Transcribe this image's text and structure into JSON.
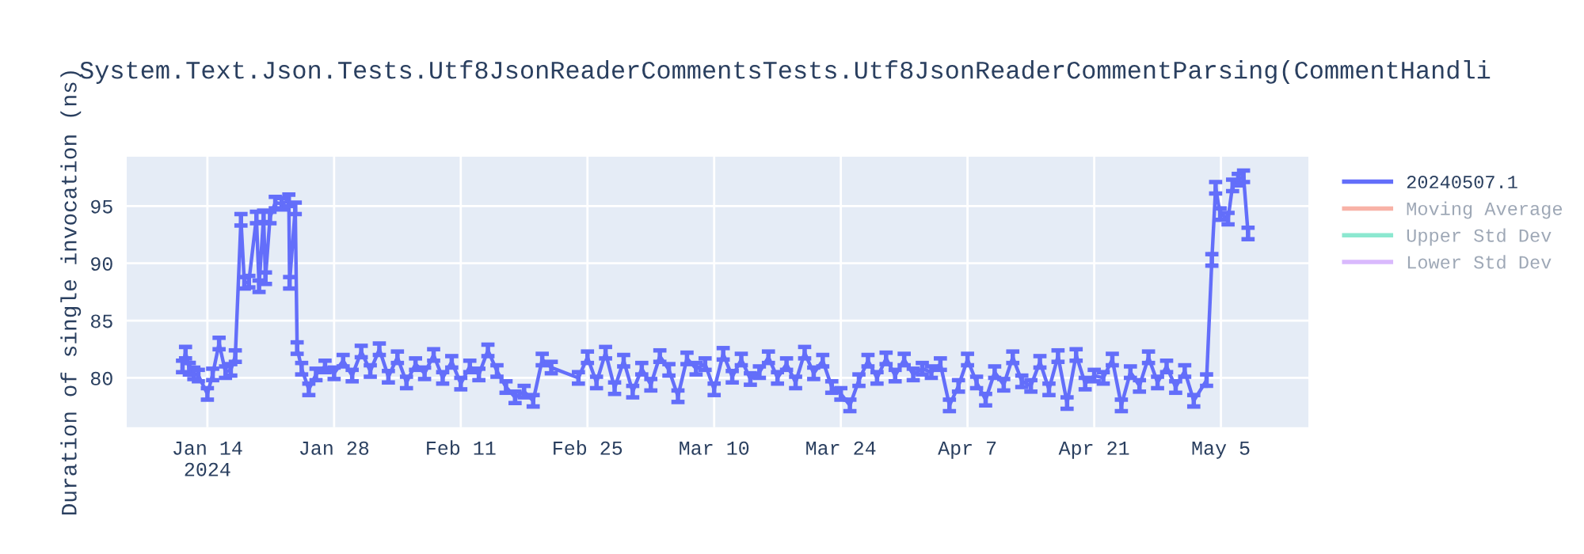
{
  "chart_data": {
    "type": "line",
    "title": "System.Text.Json.Tests.Utf8JsonReaderCommentsTests.Utf8JsonReaderCommentParsing(CommentHandli",
    "ylabel": "Duration of single invocation (ns)",
    "x": [
      "2024-01-11T06:00",
      "2024-01-11T14:00",
      "2024-01-12",
      "2024-01-12T12:00",
      "2024-01-13",
      "2024-01-14",
      "2024-01-14T14:00",
      "2024-01-15T07:00",
      "2024-01-16",
      "2024-01-16T14:00",
      "2024-01-17T02:00",
      "2024-01-17T17:00",
      "2024-01-18T02:00",
      "2024-01-18T14:00",
      "2024-01-19T10:00",
      "2024-01-19T17:00",
      "2024-01-20T05:00",
      "2024-01-20T10:00",
      "2024-01-20T22:00",
      "2024-01-21T12:00",
      "2024-01-22T05:00",
      "2024-01-23",
      "2024-01-23T02:00",
      "2024-01-23T17:00",
      "2024-01-23T22:00",
      "2024-01-24T10:00",
      "2024-01-25T05:00",
      "2024-01-26",
      "2024-01-27",
      "2024-01-28",
      "2024-01-29",
      "2024-01-30",
      "2024-01-31",
      "2024-02-01",
      "2024-02-02",
      "2024-02-03",
      "2024-02-04",
      "2024-02-05",
      "2024-02-06",
      "2024-02-07",
      "2024-02-08",
      "2024-02-09",
      "2024-02-10",
      "2024-02-11",
      "2024-02-12",
      "2024-02-13",
      "2024-02-14",
      "2024-02-15",
      "2024-02-16",
      "2024-02-17",
      "2024-02-18",
      "2024-02-19",
      "2024-02-20",
      "2024-02-21",
      "2024-02-24",
      "2024-02-25",
      "2024-02-26",
      "2024-02-27",
      "2024-02-28",
      "2024-02-29",
      "2024-03-01",
      "2024-03-02",
      "2024-03-03",
      "2024-03-04",
      "2024-03-05",
      "2024-03-06",
      "2024-03-07",
      "2024-03-08",
      "2024-03-09",
      "2024-03-10",
      "2024-03-11",
      "2024-03-12",
      "2024-03-13",
      "2024-03-14",
      "2024-03-15",
      "2024-03-16",
      "2024-03-17",
      "2024-03-18",
      "2024-03-19",
      "2024-03-20",
      "2024-03-21",
      "2024-03-22",
      "2024-03-23",
      "2024-03-24",
      "2024-03-25",
      "2024-03-26",
      "2024-03-27",
      "2024-03-28",
      "2024-03-29",
      "2024-03-30",
      "2024-03-31",
      "2024-04-01",
      "2024-04-02",
      "2024-04-03",
      "2024-04-04",
      "2024-04-05",
      "2024-04-06",
      "2024-04-07",
      "2024-04-08",
      "2024-04-09",
      "2024-04-10",
      "2024-04-11",
      "2024-04-12",
      "2024-04-13",
      "2024-04-14",
      "2024-04-15",
      "2024-04-16",
      "2024-04-17",
      "2024-04-18",
      "2024-04-19",
      "2024-04-20",
      "2024-04-21",
      "2024-04-22",
      "2024-04-23",
      "2024-04-24",
      "2024-04-25",
      "2024-04-26",
      "2024-04-27",
      "2024-04-28",
      "2024-04-29",
      "2024-04-30",
      "2024-05-01",
      "2024-05-02",
      "2024-05-03T10:00",
      "2024-05-04",
      "2024-05-04T10:00",
      "2024-05-04T22:00",
      "2024-05-05T19:00",
      "2024-05-06T07:00",
      "2024-05-06T22:00",
      "2024-05-07T12:00",
      "2024-05-08"
    ],
    "series": [
      {
        "name": "20240507.1",
        "color": "#636efa",
        "values": [
          81.0,
          82.2,
          80.8,
          80.4,
          80.2,
          78.6,
          80.3,
          83.0,
          80.5,
          80.7,
          81.9,
          93.8,
          88.3,
          88.4,
          94.0,
          88.0,
          94.1,
          88.7,
          94.0,
          95.3,
          95.2,
          95.5,
          88.3,
          94.8,
          82.6,
          80.8,
          79.0,
          80.3,
          81.0,
          80.4,
          81.5,
          80.2,
          82.3,
          80.6,
          82.5,
          80.1,
          81.8,
          79.6,
          81.2,
          80.4,
          82.0,
          80.0,
          81.4,
          79.5,
          81.0,
          80.3,
          82.4,
          80.6,
          79.2,
          78.3,
          78.8,
          78.0,
          81.6,
          80.9,
          80.0,
          81.8,
          79.6,
          82.2,
          79.1,
          81.5,
          78.8,
          80.8,
          79.4,
          81.9,
          80.7,
          78.4,
          81.7,
          80.8,
          81.2,
          79.0,
          82.1,
          80.1,
          81.6,
          79.9,
          80.5,
          81.8,
          80.0,
          81.2,
          79.6,
          82.2,
          80.4,
          81.5,
          79.2,
          78.6,
          77.6,
          79.8,
          81.5,
          80.0,
          81.7,
          80.2,
          81.6,
          80.3,
          80.8,
          80.5,
          81.2,
          77.6,
          79.3,
          81.6,
          79.6,
          78.1,
          80.5,
          79.4,
          81.8,
          79.7,
          79.3,
          81.4,
          79.0,
          81.9,
          77.8,
          82.0,
          79.5,
          80.2,
          80.0,
          81.6,
          77.6,
          80.5,
          79.3,
          81.8,
          79.6,
          81.0,
          79.2,
          80.6,
          78.0,
          79.8,
          90.3,
          96.6,
          94.3,
          93.9,
          96.8,
          97.3,
          97.6,
          92.6
        ],
        "errors": [
          0.5,
          0.5,
          0.5,
          0.5,
          0.5,
          0.5,
          0.5,
          0.5,
          0.5,
          0.5,
          0.5,
          0.5,
          0.5,
          0.5,
          0.5,
          0.5,
          0.5,
          0.5,
          0.5,
          0.5,
          0.5,
          0.5,
          0.5,
          0.5,
          0.5,
          0.5,
          0.5,
          0.5,
          0.5,
          0.5,
          0.5,
          0.5,
          0.5,
          0.5,
          0.5,
          0.5,
          0.5,
          0.5,
          0.5,
          0.5,
          0.5,
          0.5,
          0.5,
          0.5,
          0.5,
          0.5,
          0.5,
          0.5,
          0.5,
          0.5,
          0.5,
          0.5,
          0.5,
          0.5,
          0.5,
          0.5,
          0.5,
          0.5,
          0.5,
          0.5,
          0.5,
          0.5,
          0.5,
          0.5,
          0.5,
          0.5,
          0.5,
          0.5,
          0.5,
          0.5,
          0.5,
          0.5,
          0.5,
          0.5,
          0.5,
          0.5,
          0.5,
          0.5,
          0.5,
          0.5,
          0.5,
          0.5,
          0.5,
          0.5,
          0.5,
          0.5,
          0.5,
          0.5,
          0.5,
          0.5,
          0.5,
          0.5,
          0.5,
          0.5,
          0.5,
          0.5,
          0.5,
          0.5,
          0.5,
          0.5,
          0.5,
          0.5,
          0.5,
          0.5,
          0.5,
          0.5,
          0.5,
          0.5,
          0.5,
          0.5,
          0.5,
          0.5,
          0.5,
          0.5,
          0.5,
          0.5,
          0.5,
          0.5,
          0.5,
          0.5,
          0.5,
          0.5,
          0.5,
          0.5,
          0.5,
          0.5,
          0.5,
          0.5,
          0.5,
          0.5,
          0.5,
          0.5
        ]
      },
      {
        "name": "Moving Average",
        "color": "#ef553b",
        "values": [
          null,
          null,
          null,
          null,
          null,
          null,
          null,
          null,
          null,
          null,
          null,
          null,
          null,
          null,
          null,
          null,
          null,
          null,
          null,
          null,
          null,
          null,
          null,
          null,
          null,
          null,
          null,
          null,
          null,
          null,
          null,
          null,
          null,
          null,
          null,
          null,
          null,
          null,
          null,
          null,
          null,
          null,
          null,
          null,
          null,
          null,
          null,
          null,
          null,
          null,
          null,
          null,
          null,
          null,
          null,
          null,
          null,
          null,
          null,
          null,
          null,
          null,
          null,
          null,
          null,
          null,
          null,
          null,
          null,
          null,
          null,
          null,
          null,
          null,
          null,
          null,
          null,
          null,
          null,
          null,
          null,
          null,
          null,
          null,
          null,
          null,
          null,
          null,
          null,
          null,
          null,
          null,
          null,
          null,
          null,
          null,
          null,
          null,
          null,
          null,
          null,
          null,
          null,
          null,
          null,
          null,
          null,
          null,
          null,
          null,
          null,
          null,
          null,
          null,
          null,
          null,
          null,
          null,
          null,
          null,
          null,
          null,
          null,
          null,
          null,
          null,
          null,
          null,
          null,
          null,
          null,
          null
        ]
      },
      {
        "name": "Upper Std Dev",
        "color": "#00cc96",
        "values": [
          null,
          null,
          null,
          null,
          null,
          null,
          null,
          null,
          null,
          null,
          null,
          null,
          null,
          null,
          null,
          null,
          null,
          null,
          null,
          null,
          null,
          null,
          null,
          null,
          null,
          null,
          null,
          null,
          null,
          null,
          null,
          null,
          null,
          null,
          null,
          null,
          null,
          null,
          null,
          null,
          null,
          null,
          null,
          null,
          null,
          null,
          null,
          null,
          null,
          null,
          null,
          null,
          null,
          null,
          null,
          null,
          null,
          null,
          null,
          null,
          null,
          null,
          null,
          null,
          null,
          null,
          null,
          null,
          null,
          null,
          null,
          null,
          null,
          null,
          null,
          null,
          null,
          null,
          null,
          null,
          null,
          null,
          null,
          null,
          null,
          null,
          null,
          null,
          null,
          null,
          null,
          null,
          null,
          null,
          null,
          null,
          null,
          null,
          null,
          null,
          null,
          null,
          null,
          null,
          null,
          null,
          null,
          null,
          null,
          null,
          null,
          null,
          null,
          null,
          null,
          null,
          null,
          null,
          null,
          null,
          null,
          null,
          null,
          null,
          null,
          null,
          null,
          null,
          null,
          null,
          null,
          null
        ]
      },
      {
        "name": "Lower Std Dev",
        "color": "#ab63fa",
        "values": [
          null,
          null,
          null,
          null,
          null,
          null,
          null,
          null,
          null,
          null,
          null,
          null,
          null,
          null,
          null,
          null,
          null,
          null,
          null,
          null,
          null,
          null,
          null,
          null,
          null,
          null,
          null,
          null,
          null,
          null,
          null,
          null,
          null,
          null,
          null,
          null,
          null,
          null,
          null,
          null,
          null,
          null,
          null,
          null,
          null,
          null,
          null,
          null,
          null,
          null,
          null,
          null,
          null,
          null,
          null,
          null,
          null,
          null,
          null,
          null,
          null,
          null,
          null,
          null,
          null,
          null,
          null,
          null,
          null,
          null,
          null,
          null,
          null,
          null,
          null,
          null,
          null,
          null,
          null,
          null,
          null,
          null,
          null,
          null,
          null,
          null,
          null,
          null,
          null,
          null,
          null,
          null,
          null,
          null,
          null,
          null,
          null,
          null,
          null,
          null,
          null,
          null,
          null,
          null,
          null,
          null,
          null,
          null,
          null,
          null,
          null,
          null,
          null,
          null,
          null,
          null,
          null,
          null,
          null,
          null,
          null,
          null,
          null,
          null,
          null,
          null,
          null,
          null,
          null,
          null,
          null,
          null
        ]
      }
    ],
    "xlim": [
      "2024-01-05T02:00",
      "2024-05-14T16:00"
    ],
    "xticks": [
      {
        "value": "2024-01-14",
        "label": "Jan 14\n2024"
      },
      {
        "value": "2024-01-28",
        "label": "Jan 28"
      },
      {
        "value": "2024-02-11",
        "label": "Feb 11"
      },
      {
        "value": "2024-02-25",
        "label": "Feb 25"
      },
      {
        "value": "2024-03-10",
        "label": "Mar 10"
      },
      {
        "value": "2024-03-24",
        "label": "Mar 24"
      },
      {
        "value": "2024-04-07",
        "label": "Apr 7"
      },
      {
        "value": "2024-04-21",
        "label": "Apr 21"
      },
      {
        "value": "2024-05-05",
        "label": "May 5"
      }
    ],
    "ylim": [
      75.7,
      99.3
    ],
    "yticks": [
      80,
      85,
      90,
      95
    ],
    "grid": true,
    "legend": "top right",
    "marker": "none",
    "line_style": "solid"
  }
}
